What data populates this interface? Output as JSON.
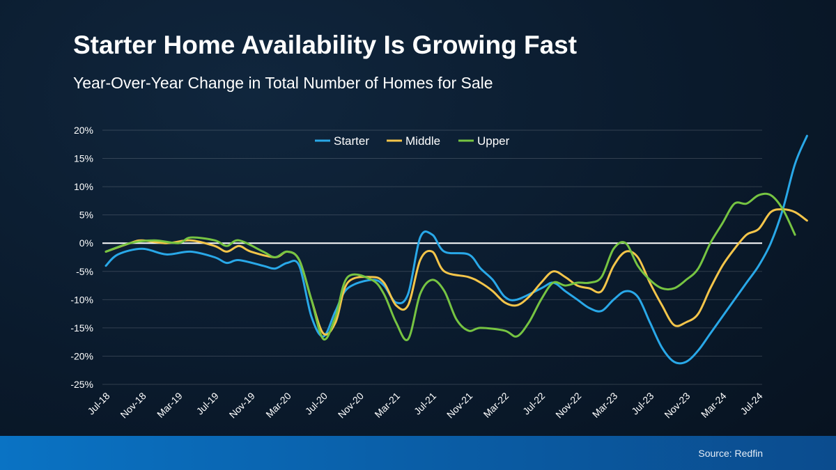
{
  "chart_data": {
    "type": "line",
    "title": "Starter Home Availability Is Growing Fast",
    "subtitle": "Year-Over-Year Change in Total Number of Homes for Sale",
    "x_tick_labels": [
      "Jul-18",
      "Nov-18",
      "Mar-19",
      "Jul-19",
      "Nov-19",
      "Mar-20",
      "Jul-20",
      "Nov-20",
      "Mar-21",
      "Jul-21",
      "Nov-21",
      "Mar-22",
      "Jul-22",
      "Nov-22",
      "Mar-23",
      "Jul-23",
      "Nov-23",
      "Mar-24",
      "Jul-24"
    ],
    "y_tick_labels": [
      "20%",
      "15%",
      "10%",
      "5%",
      "0%",
      "-5%",
      "-10%",
      "-15%",
      "-20%",
      "-25%"
    ],
    "ylim": [
      -25,
      20
    ],
    "legend_position": "top-center",
    "grid": true,
    "source": "Source: Redfin",
    "series": [
      {
        "name": "Starter",
        "color": "#29a8e8",
        "points": [
          [
            0,
            -4
          ],
          [
            1,
            -2
          ],
          [
            3,
            -1
          ],
          [
            5,
            -2
          ],
          [
            7,
            -1.5
          ],
          [
            9,
            -2.5
          ],
          [
            10,
            -3.5
          ],
          [
            11,
            -3
          ],
          [
            13,
            -4
          ],
          [
            14,
            -4.5
          ],
          [
            15,
            -3.5
          ],
          [
            16,
            -4
          ],
          [
            17,
            -13
          ],
          [
            18,
            -16.5
          ],
          [
            19,
            -12
          ],
          [
            20,
            -8
          ],
          [
            22,
            -6.5
          ],
          [
            23,
            -7.5
          ],
          [
            24,
            -10.5
          ],
          [
            25,
            -9
          ],
          [
            26,
            1
          ],
          [
            27,
            1.5
          ],
          [
            28,
            -1.5
          ],
          [
            30,
            -2
          ],
          [
            31,
            -4.5
          ],
          [
            32,
            -6.5
          ],
          [
            33,
            -9.5
          ],
          [
            34,
            -10
          ],
          [
            36,
            -8
          ],
          [
            37,
            -7
          ],
          [
            38,
            -8.5
          ],
          [
            39,
            -10
          ],
          [
            40,
            -11.5
          ],
          [
            41,
            -12
          ],
          [
            42,
            -10
          ],
          [
            43,
            -8.5
          ],
          [
            44,
            -9.5
          ],
          [
            45,
            -14
          ],
          [
            46,
            -18.5
          ],
          [
            47,
            -21
          ],
          [
            48,
            -21
          ],
          [
            49,
            -19
          ],
          [
            50,
            -16
          ],
          [
            52,
            -10
          ],
          [
            53,
            -7
          ],
          [
            54,
            -4
          ],
          [
            55,
            0
          ],
          [
            56,
            6
          ],
          [
            57,
            14
          ],
          [
            58,
            19
          ]
        ]
      },
      {
        "name": "Middle",
        "color": "#f4c54a",
        "points": [
          [
            0,
            -1.5
          ],
          [
            2,
            0
          ],
          [
            3,
            0.5
          ],
          [
            5,
            0
          ],
          [
            7,
            0.5
          ],
          [
            9,
            -0.5
          ],
          [
            10,
            -1.5
          ],
          [
            11,
            -0.5
          ],
          [
            12,
            -1.5
          ],
          [
            14,
            -2.5
          ],
          [
            15,
            -1.5
          ],
          [
            16,
            -3
          ],
          [
            17,
            -10
          ],
          [
            18,
            -16
          ],
          [
            19,
            -14
          ],
          [
            20,
            -7
          ],
          [
            22,
            -6
          ],
          [
            23,
            -7
          ],
          [
            24,
            -11
          ],
          [
            25,
            -11
          ],
          [
            26,
            -3
          ],
          [
            27,
            -1.5
          ],
          [
            28,
            -5
          ],
          [
            30,
            -6
          ],
          [
            31,
            -7
          ],
          [
            32,
            -8.5
          ],
          [
            33,
            -10.5
          ],
          [
            34,
            -11
          ],
          [
            35,
            -9.5
          ],
          [
            36,
            -7
          ],
          [
            37,
            -5
          ],
          [
            38,
            -6
          ],
          [
            39,
            -7.5
          ],
          [
            40,
            -8
          ],
          [
            41,
            -8.5
          ],
          [
            42,
            -4
          ],
          [
            43,
            -1.5
          ],
          [
            44,
            -2.5
          ],
          [
            45,
            -7
          ],
          [
            46,
            -11
          ],
          [
            47,
            -14.5
          ],
          [
            48,
            -14
          ],
          [
            49,
            -12.5
          ],
          [
            50,
            -8
          ],
          [
            51,
            -4
          ],
          [
            52,
            -1
          ],
          [
            53,
            1.5
          ],
          [
            54,
            2.5
          ],
          [
            55,
            5.5
          ],
          [
            56,
            6
          ],
          [
            57,
            5.5
          ],
          [
            58,
            4
          ]
        ]
      },
      {
        "name": "Upper",
        "color": "#76c442",
        "points": [
          [
            0,
            -1.5
          ],
          [
            2,
            0
          ],
          [
            4,
            0.5
          ],
          [
            6,
            0
          ],
          [
            7,
            1
          ],
          [
            9,
            0.5
          ],
          [
            10,
            -0.5
          ],
          [
            11,
            0.5
          ],
          [
            13,
            -1.5
          ],
          [
            14,
            -2.5
          ],
          [
            15,
            -1.5
          ],
          [
            16,
            -3
          ],
          [
            17,
            -10
          ],
          [
            18,
            -17
          ],
          [
            19,
            -13
          ],
          [
            20,
            -6
          ],
          [
            22,
            -6.5
          ],
          [
            23,
            -9
          ],
          [
            24,
            -14
          ],
          [
            25,
            -17
          ],
          [
            26,
            -9
          ],
          [
            27,
            -6.5
          ],
          [
            28,
            -8.5
          ],
          [
            29,
            -13.5
          ],
          [
            30,
            -15.5
          ],
          [
            31,
            -15
          ],
          [
            33,
            -15.5
          ],
          [
            34,
            -16.5
          ],
          [
            35,
            -14
          ],
          [
            36,
            -10
          ],
          [
            37,
            -7
          ],
          [
            38,
            -7.5
          ],
          [
            39,
            -7
          ],
          [
            40,
            -7
          ],
          [
            41,
            -6
          ],
          [
            42,
            -1
          ],
          [
            43,
            0
          ],
          [
            44,
            -4
          ],
          [
            45,
            -6.5
          ],
          [
            46,
            -8
          ],
          [
            47,
            -8
          ],
          [
            48,
            -6.5
          ],
          [
            49,
            -4.5
          ],
          [
            50,
            0
          ],
          [
            51,
            3.5
          ],
          [
            52,
            7
          ],
          [
            53,
            7
          ],
          [
            54,
            8.5
          ],
          [
            55,
            8.5
          ],
          [
            56,
            6
          ],
          [
            57,
            1.5
          ]
        ]
      }
    ]
  }
}
